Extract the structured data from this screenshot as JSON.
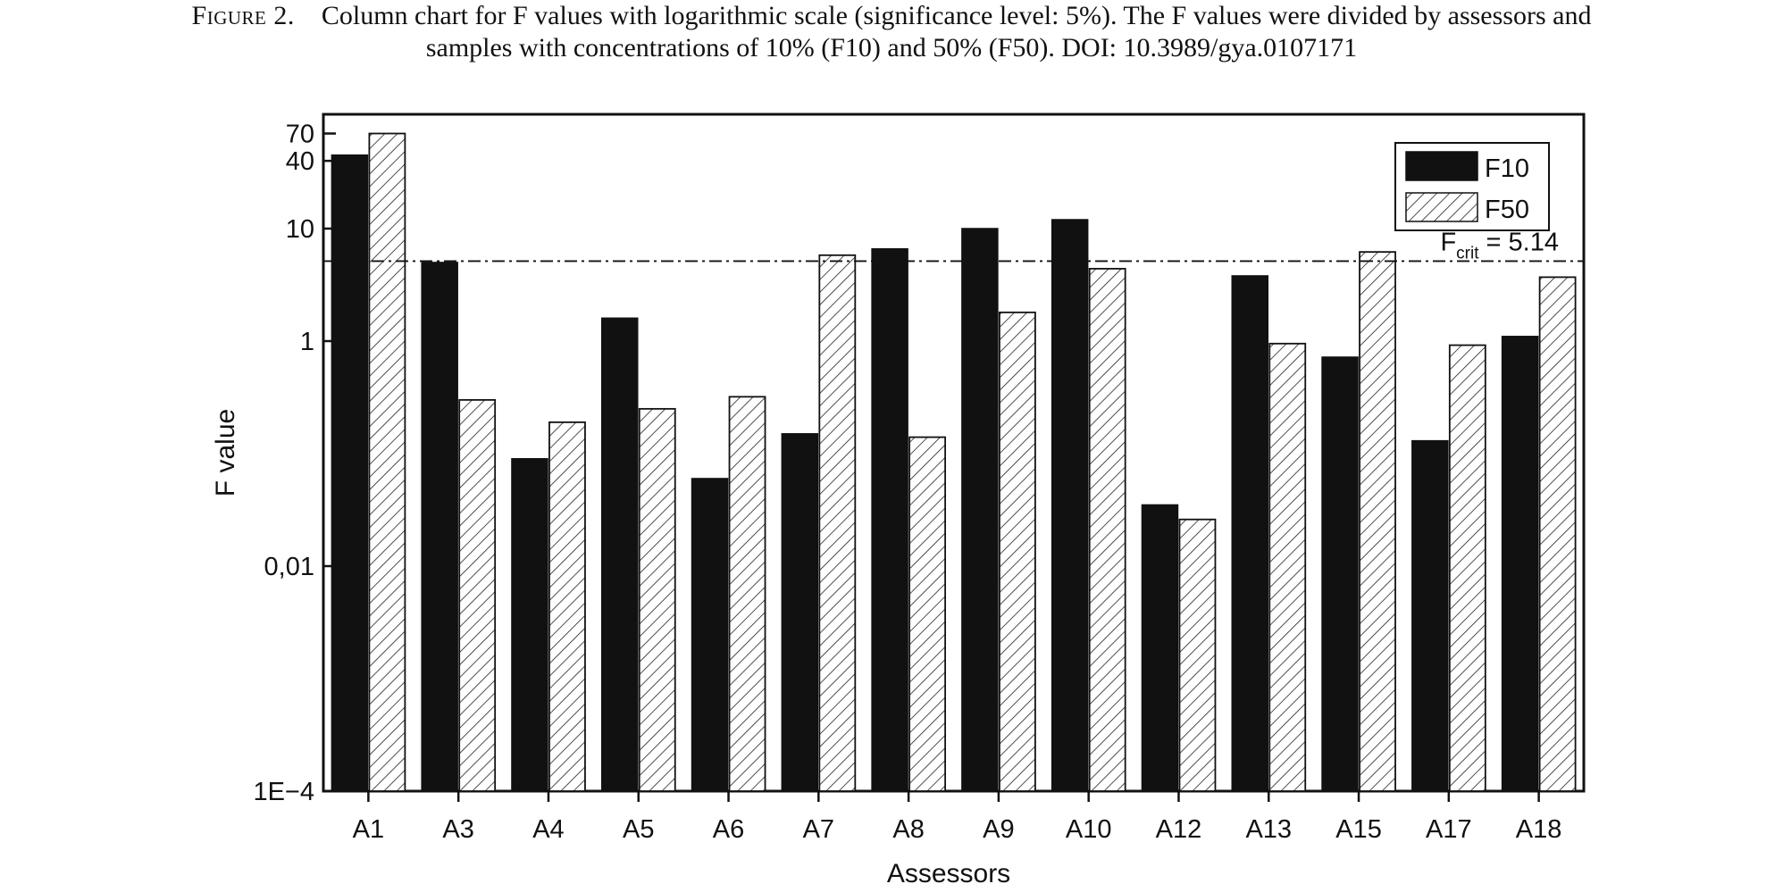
{
  "caption": {
    "label": "Figure 2.",
    "line1": "Column chart for F values with logarithmic scale (significance level: 5%). The F values were divided by assessors and",
    "line2": "samples with concentrations of 10% (F10) and 50% (F50). DOI: 10.3989/gya.0107171"
  },
  "colors": {
    "f10": "#111111",
    "f50_hatch": "#222222",
    "frame": "#111111"
  },
  "chart_data": {
    "type": "bar",
    "title": "",
    "xlabel": "Assessors",
    "ylabel": "F value",
    "yscale": "log",
    "ylim": [
      0.0001,
      100
    ],
    "yticks": [
      {
        "value": 0.0001,
        "label": "1E−4"
      },
      {
        "value": 0.01,
        "label": "0,01"
      },
      {
        "value": 1,
        "label": "1"
      },
      {
        "value": 10,
        "label": "10"
      },
      {
        "value": 40,
        "label": "40"
      },
      {
        "value": 70,
        "label": "70"
      }
    ],
    "categories": [
      "A1",
      "A3",
      "A4",
      "A5",
      "A6",
      "A7",
      "A8",
      "A9",
      "A10",
      "A12",
      "A13",
      "A15",
      "A17",
      "A18"
    ],
    "series": [
      {
        "name": "F10",
        "values": [
          45,
          5.0,
          0.09,
          1.6,
          0.06,
          0.15,
          6.6,
          10,
          12,
          0.035,
          3.8,
          0.72,
          0.13,
          1.1
        ]
      },
      {
        "name": "F50",
        "values": [
          70,
          0.3,
          0.19,
          0.25,
          0.32,
          5.8,
          0.14,
          1.8,
          4.4,
          0.026,
          0.95,
          6.2,
          0.92,
          3.7
        ]
      }
    ],
    "reference_line": {
      "value": 5.14,
      "label_main": "F",
      "label_sub": "crit",
      "label_rest": " = 5.14",
      "style": "dash-dot"
    },
    "legend": {
      "position": "top-right",
      "entries": [
        "F10",
        "F50"
      ]
    },
    "grid": false
  }
}
